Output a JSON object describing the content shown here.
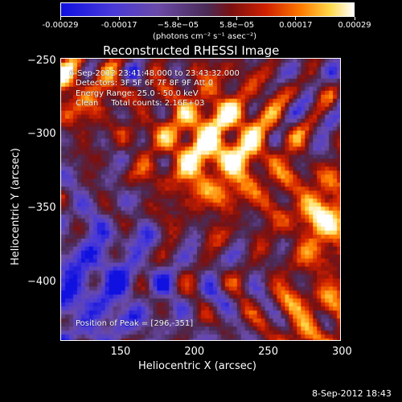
{
  "colorbar": {
    "tick_labels": [
      "-0.00029",
      "-0.00017",
      "−5.8e−05",
      "5.8e−05",
      "0.00017",
      "0.00029"
    ],
    "units": "(photons cm⁻² s⁻¹ asec⁻²)",
    "range": [
      -0.00029,
      0.00029
    ],
    "colors": [
      "#1010e0",
      "#4a3ad8",
      "#6a4aa8",
      "#4a2a55",
      "#7a1010",
      "#d02000",
      "#ff7a00",
      "#ffd84a",
      "#ffffff"
    ]
  },
  "info_lines": [
    "6-Sep-2012 23:41:48.000 to 23:43:32.000",
    "Detectors: 3F 5F 6F 7F 8F 9F Att 0",
    "Energy Range: 25.0 - 50.0 keV",
    "Clean     Total counts: 2.16E+03"
  ],
  "peak_text": "Position of Peak = [296,-351]",
  "footer_date": "8-Sep-2012 18:43",
  "chart_data": {
    "type": "heatmap",
    "title": "Reconstructed RHESSI Image",
    "xlabel": "Heliocentric X (arcsec)",
    "ylabel": "Heliocentric Y (arcsec)",
    "xlim": [
      110,
      300
    ],
    "ylim": [
      -440,
      -248
    ],
    "xticks": [
      150,
      200,
      250,
      300
    ],
    "xtick_labels": [
      "150",
      "200",
      "250",
      "300"
    ],
    "yticks": [
      -250,
      -300,
      -350,
      -400
    ],
    "ytick_labels": [
      "−250",
      "−300",
      "−350",
      "−400"
    ],
    "peak_position": [
      296,
      -351
    ],
    "value_range": [
      -0.00029,
      0.00029
    ],
    "grid": false
  }
}
